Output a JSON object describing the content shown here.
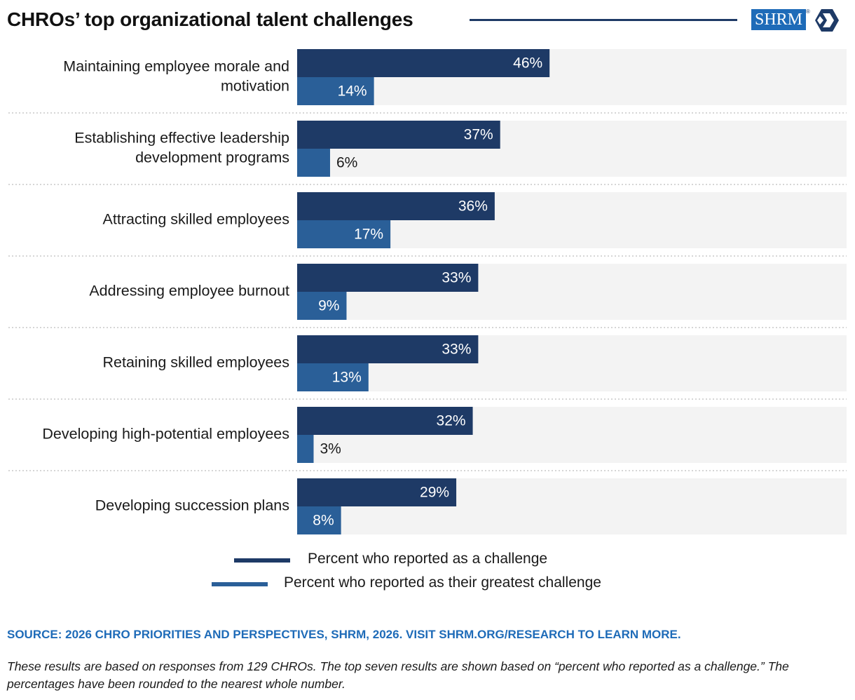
{
  "header": {
    "title": "CHROs’ top organizational talent challenges",
    "logo_text": "SHRM",
    "logo_reg": "®"
  },
  "colors": {
    "series_challenge": "#1e3a66",
    "series_greatest": "#2a5f98",
    "track": "#f3f3f3",
    "source_text": "#1e6bb8"
  },
  "chart_data": {
    "type": "bar",
    "orientation": "horizontal",
    "categories": [
      [
        "Maintaining employee morale and",
        "motivation"
      ],
      [
        "Establishing effective leadership",
        "development programs"
      ],
      [
        "Attracting skilled employees"
      ],
      [
        "Addressing employee burnout"
      ],
      [
        "Retaining skilled employees"
      ],
      [
        "Developing high-potential employees"
      ],
      [
        "Developing succession plans"
      ]
    ],
    "series": [
      {
        "name": "Percent who reported as a challenge",
        "values": [
          46,
          37,
          36,
          33,
          33,
          32,
          29
        ]
      },
      {
        "name": "Percent who reported as their greatest challenge",
        "values": [
          14,
          6,
          17,
          9,
          13,
          3,
          8
        ]
      }
    ],
    "value_suffix": "%",
    "xlim": [
      0,
      100
    ],
    "grid": false,
    "legend_position": "bottom"
  },
  "footer": {
    "source": "SOURCE: 2026 CHRO PRIORITIES AND PERSPECTIVES, SHRM, 2026. VISIT SHRM.ORG/RESEARCH TO LEARN MORE.",
    "note": "These results are based on responses from 129 CHROs. The top seven results are shown based on “percent who reported as a challenge.” The percentages have been rounded to the nearest whole number."
  }
}
